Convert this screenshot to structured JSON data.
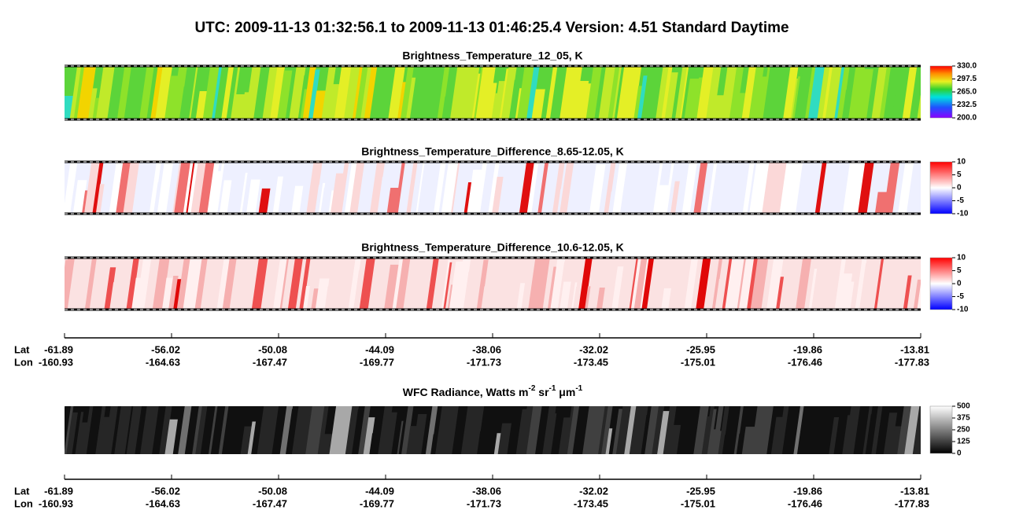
{
  "header": {
    "title": "UTC:  2009-11-13   01:32:56.1  to  2009-11-13   01:46:25.4    Version: 4.51  Standard Daytime"
  },
  "panels": [
    {
      "title": "Brightness_Temperature_12_05, K",
      "colorbar": [
        "330.0",
        "297.5",
        "265.0",
        "232.5",
        "200.0"
      ]
    },
    {
      "title": "Brightness_Temperature_Difference_8.65-12.05, K",
      "colorbar": [
        "10",
        "5",
        "0",
        "-5",
        "-10"
      ]
    },
    {
      "title": "Brightness_Temperature_Difference_10.6-12.05, K",
      "colorbar": [
        "10",
        "5",
        "0",
        "-5",
        "-10"
      ]
    },
    {
      "title_parts": [
        "WFC Radiance, Watts m",
        "-2",
        " sr",
        "-1",
        " μm",
        "-1"
      ],
      "colorbar": [
        "500",
        "375",
        "250",
        "125",
        "0"
      ]
    }
  ],
  "axes": [
    {
      "lat_label": "Lat",
      "lon_label": "Lon",
      "lat": [
        "-61.89",
        "-56.02",
        "-50.08",
        "-44.09",
        "-38.06",
        "-32.02",
        "-25.95",
        "-19.86",
        "-13.81"
      ],
      "lon": [
        "-160.93",
        "-164.63",
        "-167.47",
        "-169.77",
        "-171.73",
        "-173.45",
        "-175.01",
        "-176.46",
        "-177.83"
      ]
    },
    {
      "lat_label": "Lat",
      "lon_label": "Lon",
      "lat": [
        "-61.89",
        "-56.02",
        "-50.08",
        "-44.09",
        "-38.06",
        "-32.02",
        "-25.95",
        "-19.86",
        "-13.81"
      ],
      "lon": [
        "-160.93",
        "-164.63",
        "-167.47",
        "-169.77",
        "-171.73",
        "-173.45",
        "-175.01",
        "-176.46",
        "-177.83"
      ]
    }
  ]
}
